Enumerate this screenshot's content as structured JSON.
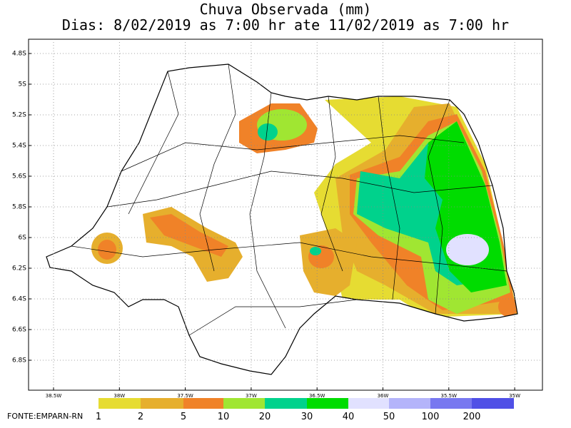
{
  "header": {
    "title": [
      "Chuva Observada (mm)",
      "Dias: 8/02/2019 as 7:00 hr ate 11/02/2019 as 7:00 hr"
    ]
  },
  "map": {
    "lat_ticks": [
      "4.8S",
      "5S",
      "5.2S",
      "5.4S",
      "5.6S",
      "5.8S",
      "6S",
      "6.2S",
      "6.4S",
      "6.6S",
      "6.8S"
    ],
    "lon_ticks": [
      "38.5W",
      "38W",
      "37.5W",
      "37W",
      "36.5W",
      "36W",
      "35.5W",
      "35W"
    ]
  },
  "legend": {
    "labels": [
      1,
      2,
      5,
      10,
      20,
      30,
      40,
      50,
      100,
      200
    ]
  },
  "source": "FONTE:EMPARN-RN"
}
